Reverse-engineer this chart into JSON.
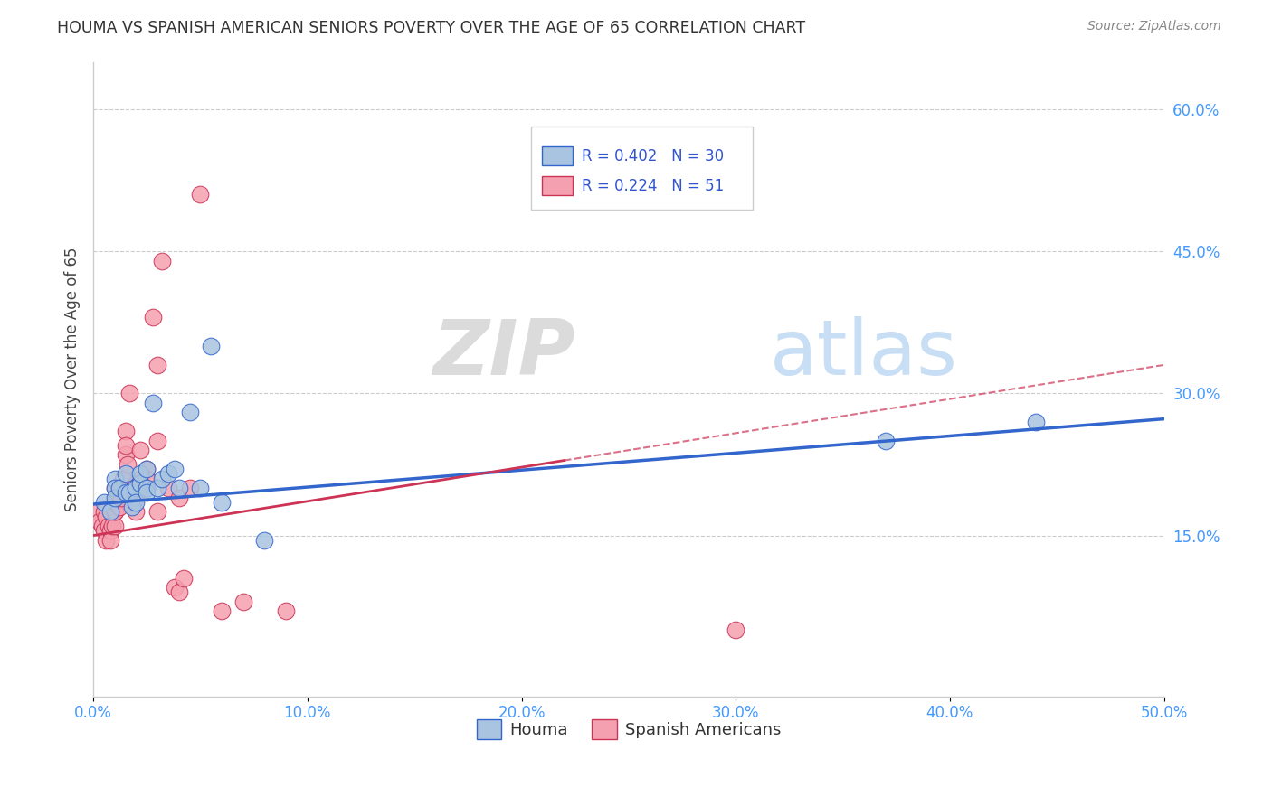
{
  "title": "HOUMA VS SPANISH AMERICAN SENIORS POVERTY OVER THE AGE OF 65 CORRELATION CHART",
  "source": "Source: ZipAtlas.com",
  "ylabel": "Seniors Poverty Over the Age of 65",
  "xlabel_ticks": [
    "0.0%",
    "10.0%",
    "20.0%",
    "30.0%",
    "40.0%",
    "50.0%"
  ],
  "ylabel_ticks_right": [
    "15.0%",
    "30.0%",
    "45.0%",
    "60.0%"
  ],
  "xlim": [
    0.0,
    0.5
  ],
  "ylim": [
    -0.02,
    0.65
  ],
  "houma_R": 0.402,
  "houma_N": 30,
  "spanish_R": 0.224,
  "spanish_N": 51,
  "houma_color": "#a8c4e0",
  "houma_line_color": "#3366cc",
  "spanish_color": "#f5a0b0",
  "spanish_line_color": "#cc3355",
  "houma_x": [
    0.005,
    0.008,
    0.01,
    0.01,
    0.01,
    0.012,
    0.015,
    0.015,
    0.017,
    0.018,
    0.02,
    0.02,
    0.022,
    0.022,
    0.025,
    0.025,
    0.025,
    0.028,
    0.03,
    0.032,
    0.035,
    0.038,
    0.04,
    0.045,
    0.05,
    0.055,
    0.06,
    0.08,
    0.37,
    0.44
  ],
  "houma_y": [
    0.185,
    0.175,
    0.21,
    0.2,
    0.19,
    0.2,
    0.215,
    0.195,
    0.195,
    0.18,
    0.2,
    0.185,
    0.205,
    0.215,
    0.22,
    0.2,
    0.195,
    0.29,
    0.2,
    0.21,
    0.215,
    0.22,
    0.2,
    0.28,
    0.2,
    0.35,
    0.185,
    0.145,
    0.25,
    0.27
  ],
  "spanish_x": [
    0.002,
    0.003,
    0.004,
    0.005,
    0.005,
    0.006,
    0.006,
    0.007,
    0.008,
    0.008,
    0.009,
    0.01,
    0.01,
    0.01,
    0.01,
    0.01,
    0.012,
    0.012,
    0.013,
    0.014,
    0.015,
    0.015,
    0.015,
    0.016,
    0.017,
    0.018,
    0.02,
    0.02,
    0.02,
    0.02,
    0.022,
    0.022,
    0.025,
    0.025,
    0.025,
    0.028,
    0.03,
    0.03,
    0.03,
    0.032,
    0.035,
    0.038,
    0.04,
    0.04,
    0.042,
    0.045,
    0.05,
    0.06,
    0.07,
    0.09,
    0.3
  ],
  "spanish_y": [
    0.175,
    0.165,
    0.16,
    0.155,
    0.175,
    0.145,
    0.17,
    0.16,
    0.155,
    0.145,
    0.16,
    0.16,
    0.175,
    0.185,
    0.2,
    0.175,
    0.18,
    0.2,
    0.19,
    0.21,
    0.26,
    0.235,
    0.245,
    0.225,
    0.3,
    0.2,
    0.205,
    0.175,
    0.195,
    0.19,
    0.24,
    0.21,
    0.22,
    0.2,
    0.21,
    0.38,
    0.33,
    0.25,
    0.175,
    0.44,
    0.2,
    0.095,
    0.09,
    0.19,
    0.105,
    0.2,
    0.51,
    0.07,
    0.08,
    0.07,
    0.05
  ],
  "watermark_zip": "ZIP",
  "watermark_atlas": "atlas",
  "background_color": "#ffffff",
  "grid_color": "#cccccc",
  "tick_color": "#4499ff"
}
